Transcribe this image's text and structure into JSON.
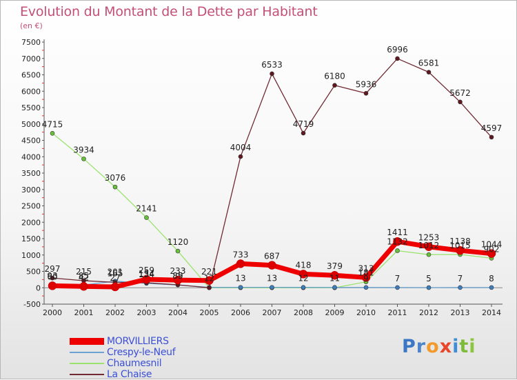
{
  "header": {
    "title": "Evolution du Montant de la Dette par Habitant",
    "unit": "(en €)"
  },
  "chart_data": {
    "type": "line",
    "title": "Evolution du Montant de la Dette par Habitant",
    "subtitle": "(en €)",
    "x": [
      2000,
      2001,
      2002,
      2003,
      2004,
      2005,
      2006,
      2007,
      2008,
      2009,
      2010,
      2011,
      2012,
      2013,
      2014
    ],
    "ylim": [
      -500,
      7500
    ],
    "yticks": [
      -500,
      0,
      500,
      1000,
      1500,
      2000,
      2500,
      3000,
      3500,
      4000,
      4500,
      5000,
      5500,
      6000,
      6500,
      7000,
      7500
    ],
    "grid": false,
    "legend_position": "bottom-left",
    "series": [
      {
        "name": "MORVILLIERS",
        "color": "#ee0000",
        "marker_color": "#dd0000",
        "values": [
          60,
          42,
          27,
          259,
          233,
          221,
          733,
          687,
          418,
          379,
          313,
          1411,
          1253,
          1138,
          1044
        ],
        "labels": [
          "60",
          "42",
          "27",
          "259",
          "233",
          "221",
          "733",
          "687",
          "418",
          "379",
          "313",
          "1411",
          "1253",
          "1138",
          "1044"
        ]
      },
      {
        "name": "Crespy-le-Neuf",
        "color": "#6aa3d1",
        "marker_color": "#3d7fbe",
        "values": [
          93,
          85,
          201,
          134,
          85,
          12,
          13,
          13,
          12,
          11,
          9,
          7,
          5,
          7,
          8
        ],
        "labels": [
          "93",
          "85",
          "201",
          "134",
          "85",
          "12",
          "13",
          "13",
          "12",
          "11",
          "9",
          "7",
          "5",
          "7",
          "8"
        ]
      },
      {
        "name": "Chaumesnil",
        "color": "#9be36e",
        "marker_color": "#66c23a",
        "values": [
          4715,
          3934,
          3076,
          2141,
          1120,
          0,
          0,
          0,
          0,
          0,
          181,
          1132,
          1012,
          1015,
          902
        ],
        "labels": [
          "4715",
          "3934",
          "3076",
          "2141",
          "1120",
          "0",
          "0",
          "0",
          "0",
          "0",
          "181",
          "1132",
          "1012",
          "1015",
          "902"
        ]
      },
      {
        "name": "La Chaise",
        "color": "#6f2a33",
        "marker_color": "#601820",
        "values": [
          297,
          215,
          165,
          154,
          89,
          0,
          4004,
          6533,
          4719,
          6180,
          5936,
          6996,
          6581,
          5672,
          4597
        ],
        "labels": [
          "297",
          "215",
          "165",
          "154",
          "89",
          "0",
          "4004",
          "6533",
          "4719",
          "6180",
          "5936",
          "6996",
          "6581",
          "5672",
          "4597"
        ]
      }
    ]
  },
  "legend": {
    "items": [
      {
        "label": "MORVILLIERS",
        "color": "#ee0000",
        "text_color": "#3b4fd6"
      },
      {
        "label": "Crespy-le-Neuf",
        "color": "#6aa3d1",
        "text_color": "#3b4fd6"
      },
      {
        "label": "Chaumesnil",
        "color": "#9be36e",
        "text_color": "#3b4fd6"
      },
      {
        "label": "La Chaise",
        "color": "#6f2a33",
        "text_color": "#3b4fd6"
      }
    ]
  },
  "logo": {
    "text": "Proxiti",
    "letters": [
      "P",
      "r",
      "o",
      "x",
      "i",
      "t",
      "i"
    ],
    "colors": [
      "#3b77c5",
      "#4b84cb",
      "#f39a2c",
      "#e9452b",
      "#3c8fd4",
      "#7dbb3b",
      "#8cc63f"
    ]
  }
}
